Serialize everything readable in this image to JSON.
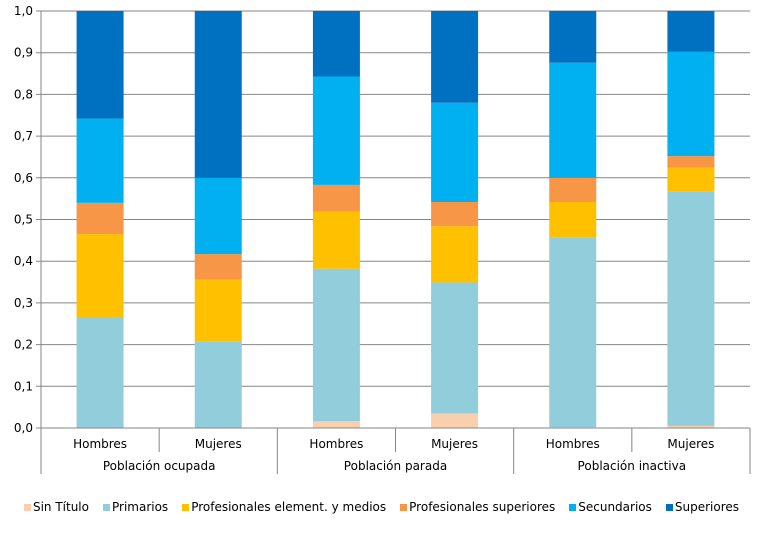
{
  "chart_data": {
    "type": "bar",
    "stacked": true,
    "title": "",
    "xlabel": "",
    "ylabel": "",
    "ylim": [
      0,
      1.0
    ],
    "yticks": [
      "0,0",
      "0,1",
      "0,2",
      "0,3",
      "0,4",
      "0,5",
      "0,6",
      "0,7",
      "0,8",
      "0,9",
      "1,0"
    ],
    "grid": true,
    "legend_position": "bottom",
    "groups": [
      {
        "label": "Población ocupada",
        "categories": [
          "Hombres",
          "Mujeres"
        ]
      },
      {
        "label": "Población parada",
        "categories": [
          "Hombres",
          "Mujeres"
        ]
      },
      {
        "label": "Población inactiva",
        "categories": [
          "Hombres",
          "Mujeres"
        ]
      }
    ],
    "categories": [
      "Hombres",
      "Mujeres",
      "Hombres",
      "Mujeres",
      "Hombres",
      "Mujeres"
    ],
    "series": [
      {
        "name": "Sin Título",
        "color": "#F9CFAE",
        "values": [
          0.0,
          0.0,
          0.016,
          0.035,
          0.002,
          0.005
        ]
      },
      {
        "name": "Primarios",
        "color": "#92CDDC",
        "values": [
          0.265,
          0.207,
          0.366,
          0.314,
          0.454,
          0.563
        ]
      },
      {
        "name": "Profesionales element. y medios",
        "color": "#FFC000",
        "values": [
          0.2,
          0.149,
          0.137,
          0.135,
          0.086,
          0.056
        ]
      },
      {
        "name": "Profesionales superiores",
        "color": "#F79646",
        "values": [
          0.075,
          0.061,
          0.064,
          0.058,
          0.058,
          0.028
        ]
      },
      {
        "name": "Secundarios",
        "color": "#00B0F0",
        "values": [
          0.202,
          0.183,
          0.26,
          0.238,
          0.276,
          0.25
        ]
      },
      {
        "name": "Superiores",
        "color": "#0070C0",
        "values": [
          0.258,
          0.4,
          0.157,
          0.22,
          0.124,
          0.098
        ]
      }
    ]
  }
}
